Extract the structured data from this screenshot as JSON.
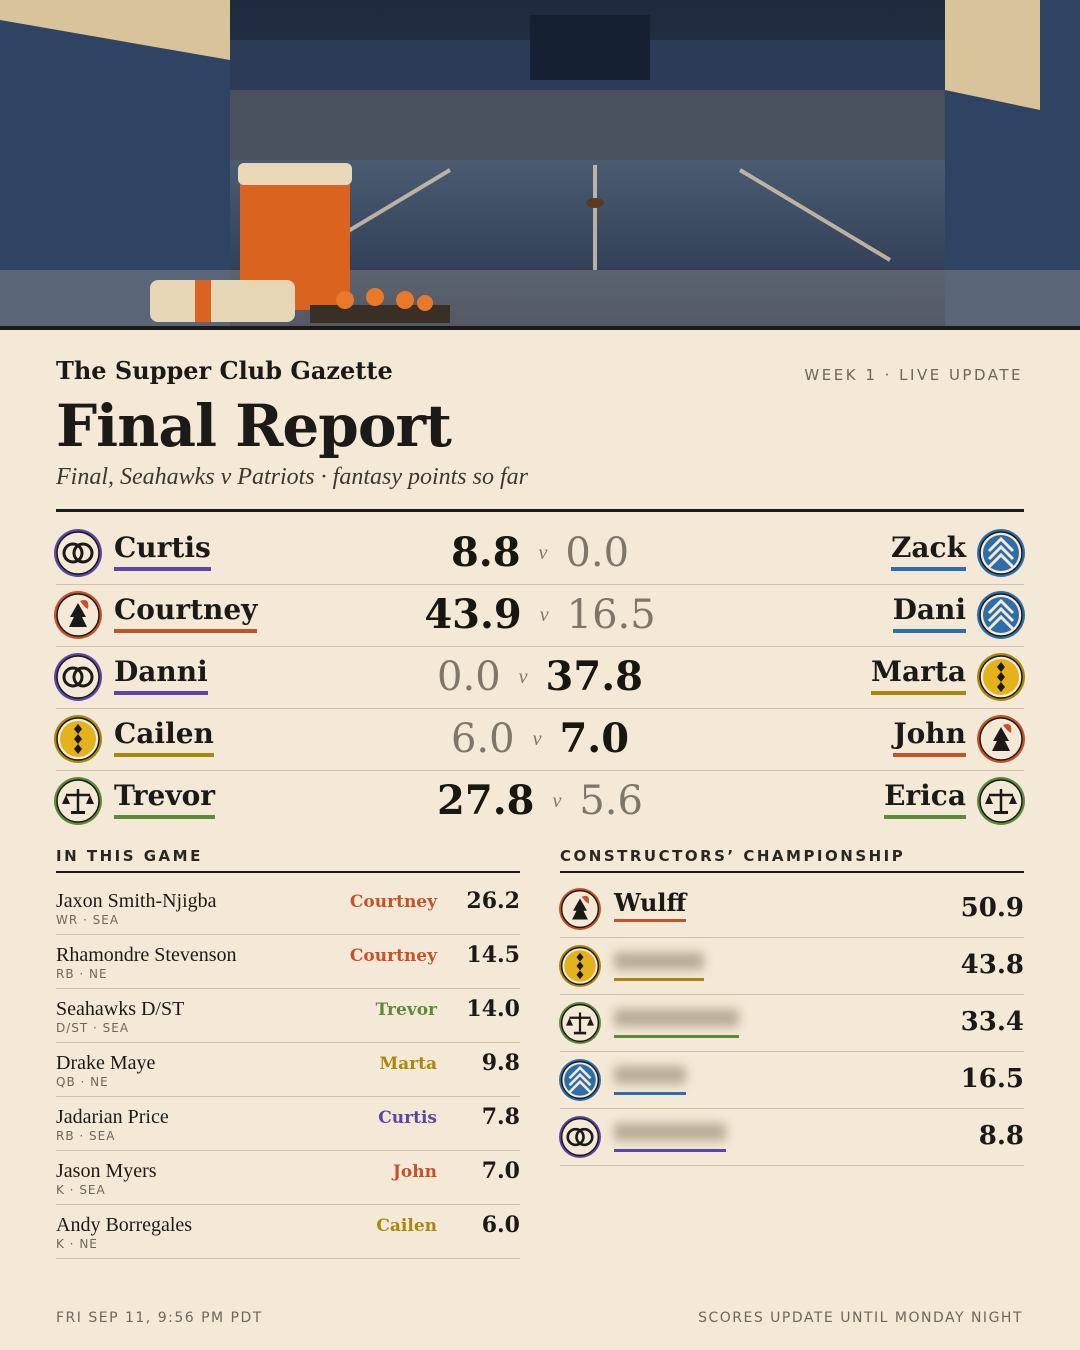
{
  "header": {
    "publication": "The Supper Club Gazette",
    "week": "WEEK 1 · LIVE UPDATE",
    "title": "Final Report",
    "subtitle": "Final, Seahawks v Patriots · fantasy points so far"
  },
  "versus": "v",
  "matchups": [
    {
      "home": {
        "name": "Curtis",
        "color": "#5b47a3",
        "score": "8.8"
      },
      "away": {
        "name": "Zack",
        "color": "#2d6ea8",
        "score": "0.0"
      }
    },
    {
      "home": {
        "name": "Courtney",
        "color": "#c4532a",
        "score": "43.9"
      },
      "away": {
        "name": "Dani",
        "color": "#2d6ea8",
        "score": "16.5"
      }
    },
    {
      "home": {
        "name": "Danni",
        "color": "#5b47a3",
        "score": "0.0"
      },
      "away": {
        "name": "Marta",
        "color": "#a8870f",
        "score": "37.8"
      }
    },
    {
      "home": {
        "name": "Cailen",
        "color": "#a8870f",
        "score": "6.0"
      },
      "away": {
        "name": "John",
        "color": "#c4532a",
        "score": "7.0"
      }
    },
    {
      "home": {
        "name": "Trevor",
        "color": "#5a8a3a",
        "score": "27.8"
      },
      "away": {
        "name": "Erica",
        "color": "#5a8a3a",
        "score": "5.6"
      }
    }
  ],
  "game": {
    "heading": "IN THIS GAME",
    "rows": [
      {
        "player": "Jaxon Smith-Njigba",
        "position": "WR · SEA",
        "owner": "Courtney",
        "points": "26.2"
      },
      {
        "player": "Rhamondre Stevenson",
        "position": "RB · NE",
        "owner": "Courtney",
        "points": "14.5"
      },
      {
        "player": "Seahawks D/ST",
        "position": "D/ST · SEA",
        "owner": "Trevor",
        "points": "14.0"
      },
      {
        "player": "Drake Maye",
        "position": "QB · NE",
        "owner": "Marta",
        "points": "9.8"
      },
      {
        "player": "Jadarian Price",
        "position": "RB · SEA",
        "owner": "Curtis",
        "points": "7.8"
      },
      {
        "player": "Jason Myers",
        "position": "K · SEA",
        "owner": "John",
        "points": "7.0"
      },
      {
        "player": "Andy Borregales",
        "position": "K · NE",
        "owner": "Cailen",
        "points": "6.0"
      }
    ]
  },
  "championship": {
    "heading": "CONSTRUCTORS’ CHAMPIONSHIP",
    "rows": [
      {
        "name": "Wulff",
        "color": "#c4532a",
        "points": "50.9"
      },
      {
        "name": null,
        "color": "#a8870f",
        "points": "43.8"
      },
      {
        "name": null,
        "color": "#5a8a3a",
        "points": "33.4"
      },
      {
        "name": null,
        "color": "#2d6ea8",
        "points": "16.5"
      },
      {
        "name": null,
        "color": "#5b47a3",
        "points": "8.8"
      }
    ]
  },
  "footer": {
    "timestamp": "FRI SEP 11, 9:56 PM PDT",
    "note": "SCORES UPDATE UNTIL MONDAY NIGHT"
  }
}
